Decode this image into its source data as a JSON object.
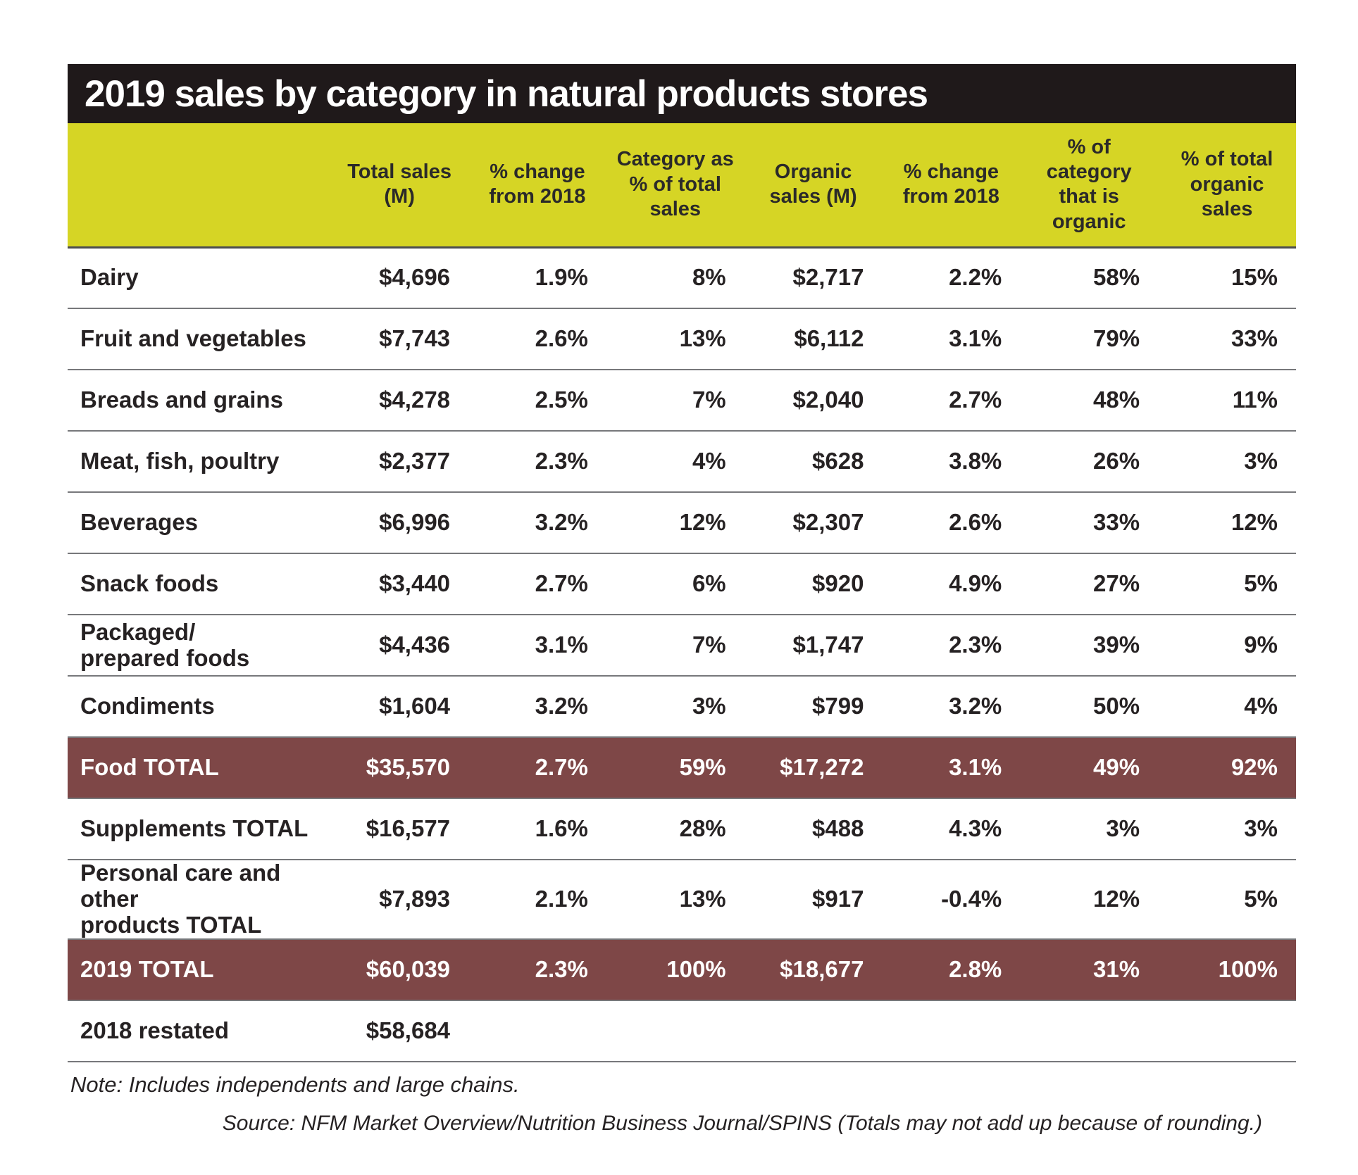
{
  "title": "2019 sales by category in natural products stores",
  "note": "Note: Includes independents and large chains.",
  "source": "Source: NFM Market Overview/Nutrition Business Journal/SPINS (Totals may not add up because of rounding.)",
  "colors": {
    "title_bar_bg": "#1f191a",
    "title_text": "#ffffff",
    "header_bg": "#d6d525",
    "header_text": "#2b2a29",
    "total_row_bg": "#7e4747",
    "total_row_text": "#ffffff",
    "body_text": "#262223",
    "rule_gray": "#77787b"
  },
  "table": {
    "columns": [
      "",
      "Total sales (M)",
      "% change from 2018",
      "Category as % of total sales",
      "Organic sales (M)",
      "% change from 2018",
      "% of category that is organic",
      "% of total organic sales"
    ],
    "rows": [
      {
        "label": "Dairy",
        "emphasis": "normal",
        "values": [
          "$4,696",
          "1.9%",
          "8%",
          "$2,717",
          "2.2%",
          "58%",
          "15%"
        ]
      },
      {
        "label": "Fruit and vegetables",
        "emphasis": "normal",
        "values": [
          "$7,743",
          "2.6%",
          "13%",
          "$6,112",
          "3.1%",
          "79%",
          "33%"
        ]
      },
      {
        "label": "Breads and grains",
        "emphasis": "normal",
        "values": [
          "$4,278",
          "2.5%",
          "7%",
          "$2,040",
          "2.7%",
          "48%",
          "11%"
        ]
      },
      {
        "label": "Meat, fish, poultry",
        "emphasis": "normal",
        "values": [
          "$2,377",
          "2.3%",
          "4%",
          "$628",
          "3.8%",
          "26%",
          "3%"
        ]
      },
      {
        "label": "Beverages",
        "emphasis": "normal",
        "values": [
          "$6,996",
          "3.2%",
          "12%",
          "$2,307",
          "2.6%",
          "33%",
          "12%"
        ]
      },
      {
        "label": "Snack foods",
        "emphasis": "normal",
        "values": [
          "$3,440",
          "2.7%",
          "6%",
          "$920",
          "4.9%",
          "27%",
          "5%"
        ]
      },
      {
        "label": "Packaged/\nprepared foods",
        "emphasis": "normal",
        "values": [
          "$4,436",
          "3.1%",
          "7%",
          "$1,747",
          "2.3%",
          "39%",
          "9%"
        ]
      },
      {
        "label": "Condiments",
        "emphasis": "normal",
        "values": [
          "$1,604",
          "3.2%",
          "3%",
          "$799",
          "3.2%",
          "50%",
          "4%"
        ]
      },
      {
        "label": "Food TOTAL",
        "emphasis": "total",
        "values": [
          "$35,570",
          "2.7%",
          "59%",
          "$17,272",
          "3.1%",
          "49%",
          "92%"
        ]
      },
      {
        "label": "Supplements TOTAL",
        "emphasis": "normal",
        "values": [
          "$16,577",
          "1.6%",
          "28%",
          "$488",
          "4.3%",
          "3%",
          "3%"
        ]
      },
      {
        "label": "Personal care and other\nproducts TOTAL",
        "emphasis": "normal",
        "values": [
          "$7,893",
          "2.1%",
          "13%",
          "$917",
          "-0.4%",
          "12%",
          "5%"
        ]
      },
      {
        "label": "2019 TOTAL",
        "emphasis": "total",
        "values": [
          "$60,039",
          "2.3%",
          "100%",
          "$18,677",
          "2.8%",
          "31%",
          "100%"
        ]
      },
      {
        "label": "2018 restated",
        "emphasis": "normal",
        "values": [
          "$58,684",
          "",
          "",
          "",
          "",
          "",
          ""
        ]
      }
    ]
  },
  "chart_data": {
    "type": "table",
    "title": "2019 sales by category in natural products stores",
    "columns": [
      "Total sales (M)",
      "% change from 2018",
      "Category as % of total sales",
      "Organic sales (M)",
      "% change from 2018",
      "% of category that is organic",
      "% of total organic sales"
    ],
    "rows": [
      {
        "label": "Dairy",
        "values": [
          4696,
          1.9,
          8,
          2717,
          2.2,
          58,
          15
        ]
      },
      {
        "label": "Fruit and vegetables",
        "values": [
          7743,
          2.6,
          13,
          6112,
          3.1,
          79,
          33
        ]
      },
      {
        "label": "Breads and grains",
        "values": [
          4278,
          2.5,
          7,
          2040,
          2.7,
          48,
          11
        ]
      },
      {
        "label": "Meat, fish, poultry",
        "values": [
          2377,
          2.3,
          4,
          628,
          3.8,
          26,
          3
        ]
      },
      {
        "label": "Beverages",
        "values": [
          6996,
          3.2,
          12,
          2307,
          2.6,
          33,
          12
        ]
      },
      {
        "label": "Snack foods",
        "values": [
          3440,
          2.7,
          6,
          920,
          4.9,
          27,
          5
        ]
      },
      {
        "label": "Packaged/prepared foods",
        "values": [
          4436,
          3.1,
          7,
          1747,
          2.3,
          39,
          9
        ]
      },
      {
        "label": "Condiments",
        "values": [
          1604,
          3.2,
          3,
          799,
          3.2,
          50,
          4
        ]
      },
      {
        "label": "Food TOTAL",
        "values": [
          35570,
          2.7,
          59,
          17272,
          3.1,
          49,
          92
        ]
      },
      {
        "label": "Supplements TOTAL",
        "values": [
          16577,
          1.6,
          28,
          488,
          4.3,
          3,
          3
        ]
      },
      {
        "label": "Personal care and other products TOTAL",
        "values": [
          7893,
          2.1,
          13,
          917,
          -0.4,
          12,
          5
        ]
      },
      {
        "label": "2019 TOTAL",
        "values": [
          60039,
          2.3,
          100,
          18677,
          2.8,
          31,
          100
        ]
      },
      {
        "label": "2018 restated",
        "values": [
          58684,
          null,
          null,
          null,
          null,
          null,
          null
        ]
      }
    ],
    "units": {
      "sales": "USD millions",
      "percent_columns": [
        1,
        2,
        4,
        5,
        6
      ]
    },
    "note": "Includes independents and large chains.",
    "source": "NFM Market Overview/Nutrition Business Journal/SPINS"
  }
}
